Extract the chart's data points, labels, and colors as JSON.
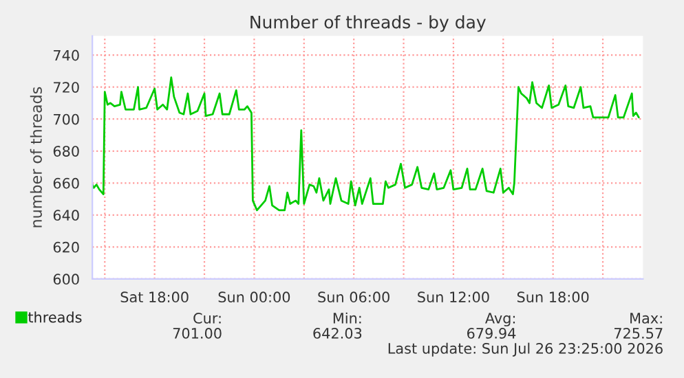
{
  "chart_data": {
    "type": "line",
    "title": "Number of threads - by day",
    "ylabel": "number of threads",
    "x": [
      "2026-07-25T14:15",
      "2026-07-25T14:20",
      "2026-07-25T14:30",
      "2026-07-25T14:40",
      "2026-07-25T14:55",
      "2026-07-25T15:00",
      "2026-07-25T15:10",
      "2026-07-25T15:20",
      "2026-07-25T15:35",
      "2026-07-25T15:55",
      "2026-07-25T16:00",
      "2026-07-25T16:15",
      "2026-07-25T16:45",
      "2026-07-25T17:00",
      "2026-07-25T17:05",
      "2026-07-25T17:30",
      "2026-07-25T18:00",
      "2026-07-25T18:10",
      "2026-07-25T18:30",
      "2026-07-25T18:45",
      "2026-07-25T19:00",
      "2026-07-25T19:10",
      "2026-07-25T19:30",
      "2026-07-25T19:45",
      "2026-07-25T20:00",
      "2026-07-25T20:10",
      "2026-07-25T20:35",
      "2026-07-25T21:00",
      "2026-07-25T21:05",
      "2026-07-25T21:30",
      "2026-07-25T21:55",
      "2026-07-25T22:05",
      "2026-07-25T22:30",
      "2026-07-25T22:55",
      "2026-07-25T23:05",
      "2026-07-25T23:25",
      "2026-07-25T23:35",
      "2026-07-25T23:50",
      "2026-07-25T23:55",
      "2026-07-26T00:10",
      "2026-07-26T00:25",
      "2026-07-26T00:40",
      "2026-07-26T00:55",
      "2026-07-26T01:05",
      "2026-07-26T01:30",
      "2026-07-26T01:50",
      "2026-07-26T02:00",
      "2026-07-26T02:10",
      "2026-07-26T02:30",
      "2026-07-26T02:40",
      "2026-07-26T02:50",
      "2026-07-26T03:00",
      "2026-07-26T03:20",
      "2026-07-26T03:35",
      "2026-07-26T03:45",
      "2026-07-26T03:55",
      "2026-07-26T04:10",
      "2026-07-26T04:30",
      "2026-07-26T04:35",
      "2026-07-26T04:55",
      "2026-07-26T05:15",
      "2026-07-26T05:40",
      "2026-07-26T05:50",
      "2026-07-26T06:05",
      "2026-07-26T06:20",
      "2026-07-26T06:30",
      "2026-07-26T07:00",
      "2026-07-26T07:10",
      "2026-07-26T07:45",
      "2026-07-26T07:55",
      "2026-07-26T08:05",
      "2026-07-26T08:30",
      "2026-07-26T08:50",
      "2026-07-26T09:05",
      "2026-07-26T09:30",
      "2026-07-26T09:50",
      "2026-07-26T10:05",
      "2026-07-26T10:30",
      "2026-07-26T10:50",
      "2026-07-26T11:00",
      "2026-07-26T11:25",
      "2026-07-26T11:50",
      "2026-07-26T12:00",
      "2026-07-26T12:30",
      "2026-07-26T12:50",
      "2026-07-26T13:00",
      "2026-07-26T13:20",
      "2026-07-26T13:45",
      "2026-07-26T14:00",
      "2026-07-26T14:25",
      "2026-07-26T14:50",
      "2026-07-26T15:00",
      "2026-07-26T15:20",
      "2026-07-26T15:35",
      "2026-07-26T15:40",
      "2026-07-26T15:55",
      "2026-07-26T16:05",
      "2026-07-26T16:25",
      "2026-07-26T16:35",
      "2026-07-26T16:45",
      "2026-07-26T17:00",
      "2026-07-26T17:20",
      "2026-07-26T17:45",
      "2026-07-26T17:55",
      "2026-07-26T18:20",
      "2026-07-26T18:45",
      "2026-07-26T18:55",
      "2026-07-26T19:15",
      "2026-07-26T19:40",
      "2026-07-26T19:50",
      "2026-07-26T20:15",
      "2026-07-26T20:25",
      "2026-07-26T20:55",
      "2026-07-26T21:10",
      "2026-07-26T21:20",
      "2026-07-26T21:45",
      "2026-07-26T21:55",
      "2026-07-26T22:15",
      "2026-07-26T22:45",
      "2026-07-26T22:50",
      "2026-07-26T23:00",
      "2026-07-26T23:10"
    ],
    "series": [
      {
        "name": "threads",
        "color": "#00cc00",
        "values": [
          659,
          657,
          659,
          656,
          653,
          717,
          709,
          710,
          708,
          709,
          717,
          706,
          706,
          720,
          706,
          707,
          719,
          706,
          709,
          706,
          726,
          714,
          704,
          703,
          716,
          703,
          705,
          716,
          702,
          703,
          716,
          703,
          703,
          718,
          706,
          706,
          708,
          704,
          649,
          643,
          646,
          649,
          658,
          646,
          643,
          643,
          654,
          647,
          649,
          647,
          693,
          647,
          659,
          658,
          654,
          663,
          649,
          656,
          647,
          663,
          649,
          647,
          661,
          646,
          657,
          647,
          663,
          647,
          647,
          661,
          657,
          659,
          672,
          657,
          659,
          670,
          657,
          656,
          666,
          656,
          657,
          668,
          656,
          657,
          669,
          656,
          656,
          669,
          655,
          654,
          669,
          654,
          657,
          653,
          660,
          720,
          716,
          713,
          710,
          723,
          710,
          707,
          721,
          707,
          709,
          721,
          708,
          707,
          720,
          707,
          708,
          701,
          701,
          701,
          701,
          715,
          701,
          701,
          716,
          702,
          704,
          701
        ]
      }
    ],
    "xlim": [
      "2026-07-25T14:15",
      "2026-07-26T23:25"
    ],
    "xticks": [
      {
        "value": "2026-07-25T15:00",
        "label": null
      },
      {
        "value": "2026-07-25T18:00",
        "label": "Sat 18:00"
      },
      {
        "value": "2026-07-25T21:00",
        "label": null
      },
      {
        "value": "2026-07-26T00:00",
        "label": "Sun 00:00"
      },
      {
        "value": "2026-07-26T03:00",
        "label": null
      },
      {
        "value": "2026-07-26T06:00",
        "label": "Sun 06:00"
      },
      {
        "value": "2026-07-26T09:00",
        "label": null
      },
      {
        "value": "2026-07-26T12:00",
        "label": "Sun 12:00"
      },
      {
        "value": "2026-07-26T15:00",
        "label": null
      },
      {
        "value": "2026-07-26T18:00",
        "label": "Sun 18:00"
      },
      {
        "value": "2026-07-26T21:00",
        "label": null
      }
    ],
    "ylim": [
      600,
      752
    ],
    "yticks": [
      600,
      620,
      640,
      660,
      680,
      700,
      720,
      740
    ],
    "grid": true,
    "legend": "bottom",
    "marker": "none",
    "line_style": "solid",
    "annotations": [
      "Cur:",
      "701.00",
      "Min:",
      "642.03",
      "Avg:",
      "679.94",
      "Max:",
      "725.57",
      "Last update: Sun Jul 26 23:25:00 2026"
    ]
  }
}
